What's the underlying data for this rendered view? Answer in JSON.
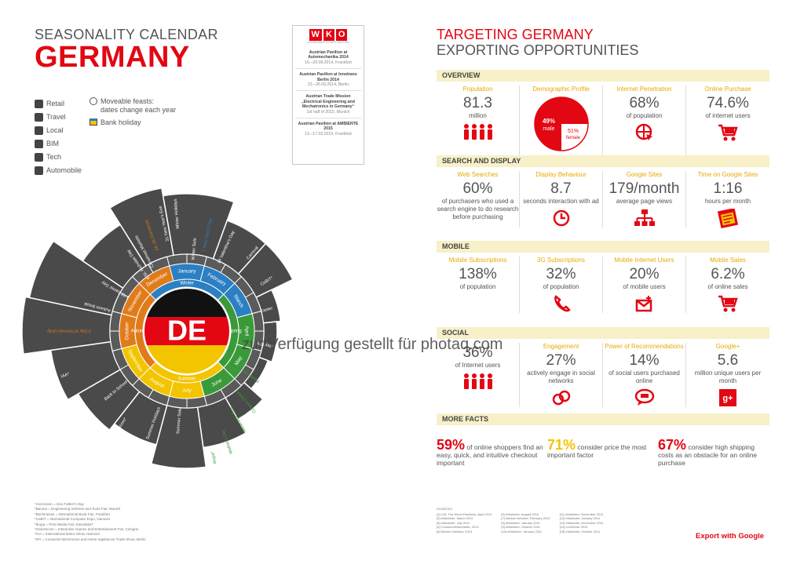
{
  "left": {
    "title_small": "SEASONALITY CALENDAR",
    "title_big": "GERMANY",
    "legend": [
      {
        "icon": "cart-icon",
        "label": "Retail"
      },
      {
        "icon": "plane-icon",
        "label": "Travel"
      },
      {
        "icon": "house-icon",
        "label": "Local"
      },
      {
        "icon": "wrench-icon",
        "label": "BIM"
      },
      {
        "icon": "gamepad-icon",
        "label": "Tech"
      },
      {
        "icon": "parking-icon",
        "label": "Automobile"
      }
    ],
    "legend2": {
      "moveable": "Moveable feasts:",
      "moveable_sub": "dates change each year",
      "bank": "Bank holiday"
    },
    "center": "DE",
    "months": [
      "January",
      "February",
      "March",
      "April",
      "May",
      "June",
      "July",
      "August",
      "September",
      "October",
      "November",
      "December"
    ],
    "seasons": [
      "Winter",
      "Spring",
      "Summer",
      "Autumn"
    ],
    "events": [
      "Winter Holidays",
      "31 New Year's Eve",
      "24–26 Christmas",
      "Christmas Markets",
      "6 St. Nicholas Day",
      "1 New Year's Day",
      "Winter Sale",
      "14 Valentine's Day",
      "Carnival",
      "CeBIT*",
      "Easter",
      "1 May Day",
      "Pentecost",
      "Corpus Christi",
      "Ascension Day",
      "Mother's Day",
      "drupa*",
      "Summer Sale",
      "Summer Holidays",
      "gamescom*",
      "Back to School",
      "IAA*",
      "3 Day of German Unity",
      "Autumn Break",
      "1 All Saints' Day",
      "Buchmesse*"
    ],
    "footnotes": [
      "*Ascension = Also Father's Day",
      "*Bauma = Engineering Vehicles and Tools Fair, Munich",
      "*Buchmesse = International Book Fair, Frankfurt",
      "*CeBIT = International Computer Expo, Hanover",
      "*drupa = Print Media Fair, Düsseldorf",
      "*Gamescom = Interactive Games and Entertainment Fair, Cologne",
      "*IAA = International Motor Show, Hanover",
      "*IFA = Consumer Electronics and Home Appliances Trade Show, Berlin"
    ]
  },
  "wko": {
    "logo": [
      "W",
      "K",
      "O"
    ],
    "logo_sub": "AUSSENWIRTSCHAFT AUSTRIA",
    "events": [
      {
        "title": "Austrian Pavilion at Automechanika 2014",
        "date": "16.–20.09.2014, Frankfurt"
      },
      {
        "title": "Austrian Pavilion at Innotrans Berlin 2014",
        "date": "23.–26.09.2014, Berlin"
      },
      {
        "title": "Austrian Trade Mission „Electrical Engineering and Mechatronics in Germany“",
        "date": "1st half of 2015, Munich"
      },
      {
        "title": "Austrian Pavilion at AMBIENTE 2015",
        "date": "13.–17.02.2015, Frankfurt"
      }
    ]
  },
  "right": {
    "title1": "TARGETING GERMANY",
    "title2": "EXPORTING OPPORTUNITIES",
    "sections": [
      {
        "name": "OVERVIEW",
        "cells": [
          {
            "label": "Population",
            "value": "81.3",
            "sub": "million",
            "icon": "people-icon"
          },
          {
            "label": "Demographic Profile",
            "value": "",
            "sub": "",
            "icon": "pie-icon",
            "pie": {
              "male_pct": "49%",
              "male": "male",
              "female_pct": "51%",
              "female": "female"
            }
          },
          {
            "label": "Internet Penetration",
            "value": "68%",
            "sub": "of population",
            "icon": "globe-cursor-icon"
          },
          {
            "label": "Online Purchase",
            "value": "74.6%",
            "sub": "of internet users",
            "icon": "cart-icon"
          }
        ]
      },
      {
        "name": "SEARCH AND DISPLAY",
        "cells": [
          {
            "label": "Web Searches",
            "value": "60%",
            "sub": "of purchasers who used a search engine to do research before purchasing",
            "icon": ""
          },
          {
            "label": "Display Behaviour",
            "value": "8.7",
            "sub": "seconds interaction with ad",
            "icon": "clock-icon"
          },
          {
            "label": "Google Sites",
            "value": "179/month",
            "sub": "average page views",
            "icon": "sitemap-icon"
          },
          {
            "label": "Time on Google Sites",
            "value": "1:16",
            "sub": "hours per month",
            "icon": "browser-icon"
          }
        ]
      },
      {
        "name": "MOBILE",
        "cells": [
          {
            "label": "Mobile Subscriptions",
            "value": "138%",
            "sub": "of population",
            "icon": ""
          },
          {
            "label": "3G Subscriptions",
            "value": "32%",
            "sub": "of population",
            "icon": "phone-icon"
          },
          {
            "label": "Mobile Internet Users",
            "value": "20%",
            "sub": "of mobile users",
            "icon": "mail-icon"
          },
          {
            "label": "Mobile Sales",
            "value": "6.2%",
            "sub": "of online sales",
            "icon": "cart-icon"
          }
        ]
      },
      {
        "name": "SOCIAL",
        "cells": [
          {
            "label": "",
            "value": "36%",
            "sub": "of Internet users",
            "icon": "people-icon"
          },
          {
            "label": "Engagement",
            "value": "27%",
            "sub": "actively engage in social networks",
            "icon": "link-icon"
          },
          {
            "label": "Power of Recommendations",
            "value": "14%",
            "sub": "of social users purchased online",
            "icon": "chat-icon"
          },
          {
            "label": "Google+",
            "value": "5.6",
            "sub": "million unique users per month",
            "icon": "gplus-icon"
          }
        ]
      }
    ],
    "more_facts_title": "MORE FACTS",
    "facts": [
      {
        "big": "59%",
        "text": "of online shoppers find an easy, quick, and intuitive checkout important",
        "color": "#e30613"
      },
      {
        "big": "71%",
        "text": "consider price the most important factor",
        "color": "#f3c400"
      },
      {
        "big": "67%",
        "text": "consider high shipping costs as an obstacle for an online purchase",
        "color": "#e30613"
      }
    ],
    "sources_title": "SOURCES:",
    "sources": [
      [
        "[1] CIA: The World Factbook, April 2012",
        "[2] eMarketer, March 2011",
        "[3] eMarketer, July 2011",
        "[4] ConsumerBarometer, 2013",
        "[5] Nielsen Netview, 2013"
      ],
      [
        "[6] eMarketer, August 2010",
        "[7] Nielsen Netview, February 2012",
        "[8] eMarketer, January 2011",
        "[9] eMarketer, October 2011",
        "[10] eMarketer, January 2011"
      ],
      [
        "[11] eMarketer, November 2011",
        "[12] eMarketer, January 2011",
        "[13] eMarketer, December 2011",
        "[14] comScore 2013",
        "[15] eMarketer, October 2011"
      ]
    ],
    "export": "Export with Google"
  },
  "watermark": "zur Verfügung gestellt für photaq.com",
  "colors": {
    "red": "#e30613",
    "yellow": "#f3c400",
    "blue": "#2b7fc2",
    "green": "#3a9a3a",
    "orange": "#e07b1a",
    "dark": "#4a4a4a"
  }
}
